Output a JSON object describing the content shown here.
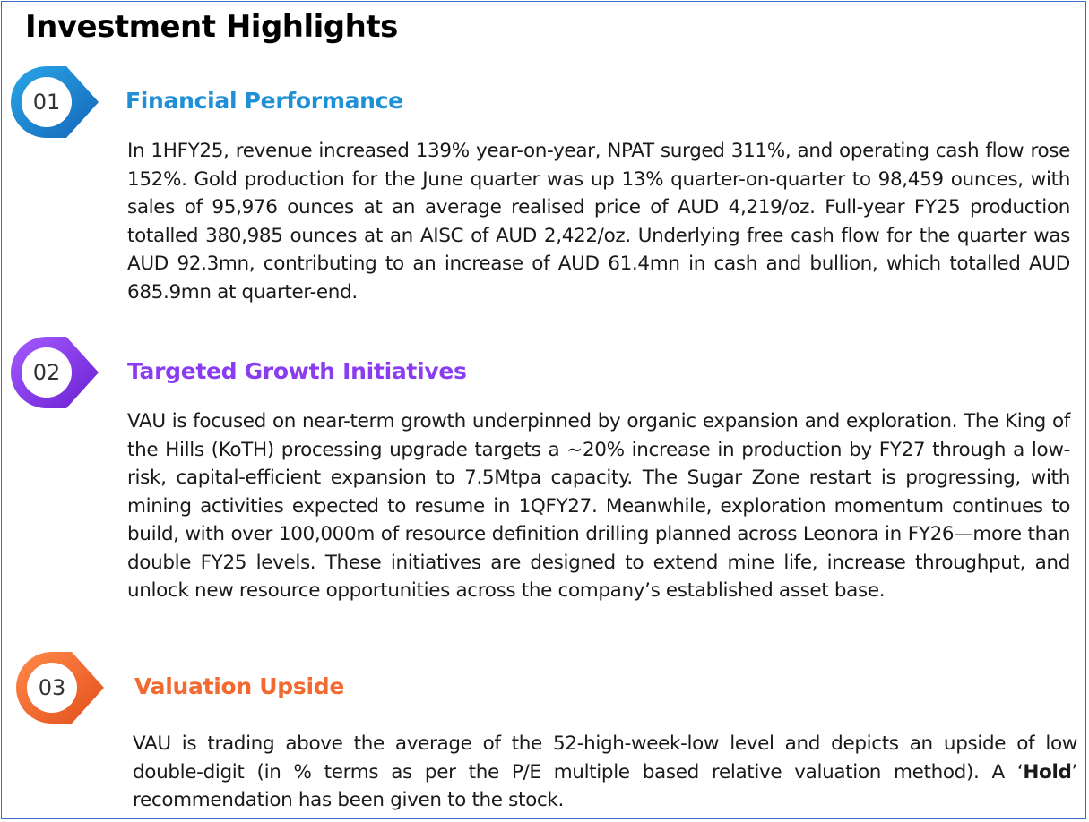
{
  "page": {
    "title": "Investment Highlights"
  },
  "colors": {
    "border": "#3b6fc7",
    "section1": "#1f8fd6",
    "section2": "#8a3df0",
    "section3": "#f26a2f"
  },
  "sections": [
    {
      "number": "01",
      "heading": "Financial Performance",
      "body": "In 1HFY25, revenue increased 139% year-on-year, NPAT surged 311%, and operating cash flow rose 152%. Gold production for the June quarter was up 13% quarter-on-quarter to 98,459 ounces, with sales of 95,976 ounces at an average realised price of AUD 4,219/oz. Full-year FY25 production totalled 380,985 ounces at an AISC of AUD 2,422/oz. Underlying free cash flow for the quarter was AUD 92.3mn, contributing to an increase of AUD 61.4mn in cash and bullion, which totalled AUD 685.9mn at quarter-end."
    },
    {
      "number": "02",
      "heading": "Targeted Growth Initiatives",
      "body": "VAU is focused on near-term growth underpinned by organic expansion and exploration. The King of the Hills (KoTH) processing upgrade targets a ~20% increase in production by FY27 through a low-risk, capital-efficient expansion to 7.5Mtpa capacity. The Sugar Zone restart is progressing, with mining activities expected to resume in 1QFY27. Meanwhile, exploration momentum continues to build, with over 100,000m of resource definition drilling planned across Leonora in FY26—more than double FY25 levels. These initiatives are designed to extend mine life, increase throughput, and unlock new resource opportunities across the company’s established asset base."
    },
    {
      "number": "03",
      "heading": "Valuation Upside",
      "body_before": "VAU is trading above the average of the 52-high-week-low level and depicts an upside of low double-digit (in % terms as per the P/E multiple based relative valuation method). A ‘",
      "body_bold": "Hold",
      "body_after": "’ recommendation has been given to the stock."
    }
  ]
}
